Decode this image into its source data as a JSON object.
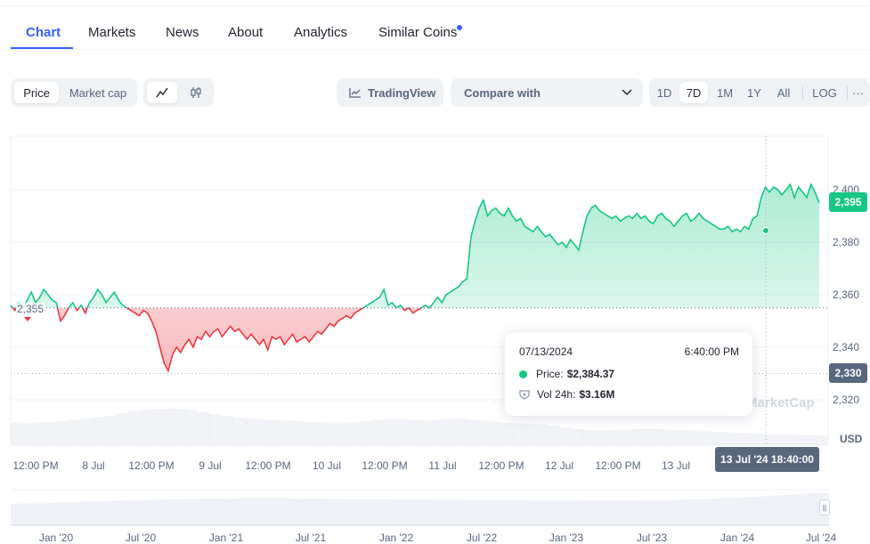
{
  "tabs": [
    {
      "label": "Chart",
      "active": true
    },
    {
      "label": "Markets"
    },
    {
      "label": "News"
    },
    {
      "label": "About"
    },
    {
      "label": "Analytics"
    },
    {
      "label": "Similar Coins"
    }
  ],
  "toolbar": {
    "price_label": "Price",
    "market_cap_label": "Market cap",
    "line_chart_icon": "line-chart-icon",
    "candlestick_icon": "candlestick-icon",
    "tradingview_label": "TradingView",
    "compare_label": "Compare with",
    "ranges": [
      "1D",
      "7D",
      "1M",
      "1Y",
      "All"
    ],
    "selected_range": "7D",
    "log_label": "LOG",
    "more_label": "···"
  },
  "chart_data": {
    "type": "area",
    "baseline": 2355,
    "baseline_label": "2,355",
    "current_price_label": "2,395",
    "crosshair_price_label": "2,330",
    "crosshair_time_label": "13 Jul '24 18:40:00",
    "y_ticks": [
      "2,400",
      "2,380",
      "2,360",
      "2,340",
      "2,320"
    ],
    "ylim": [
      2310,
      2410
    ],
    "unit": "USD",
    "x_ticks": [
      "12:00 PM",
      "8 Jul",
      "12:00 PM",
      "9 Jul",
      "12:00 PM",
      "10 Jul",
      "12:00 PM",
      "11 Jul",
      "12:00 PM",
      "12 Jul",
      "12:00 PM",
      "13 Jul"
    ],
    "colors": {
      "up": "#16c784",
      "down": "#ea3943"
    },
    "price_series": [
      2356,
      2354,
      2357,
      2355,
      2358,
      2361,
      2357,
      2359,
      2362,
      2360,
      2358,
      2357,
      2350,
      2352,
      2355,
      2357,
      2354,
      2356,
      2353,
      2357,
      2359,
      2362,
      2360,
      2357,
      2359,
      2361,
      2358,
      2356,
      2355,
      2354,
      2353,
      2352,
      2354,
      2353,
      2350,
      2346,
      2340,
      2334,
      2331,
      2337,
      2340,
      2338,
      2341,
      2343,
      2340,
      2344,
      2343,
      2346,
      2344,
      2346,
      2347,
      2344,
      2346,
      2348,
      2346,
      2347,
      2345,
      2343,
      2345,
      2343,
      2341,
      2343,
      2339,
      2344,
      2343,
      2344,
      2341,
      2343,
      2345,
      2342,
      2343,
      2344,
      2342,
      2344,
      2346,
      2345,
      2347,
      2349,
      2348,
      2350,
      2351,
      2352,
      2351,
      2353,
      2354,
      2355,
      2356,
      2357,
      2358,
      2359,
      2362,
      2356,
      2357,
      2355,
      2356,
      2354,
      2355,
      2353,
      2354,
      2355,
      2356,
      2355,
      2357,
      2359,
      2357,
      2360,
      2361,
      2362,
      2363,
      2365,
      2366,
      2382,
      2388,
      2393,
      2396,
      2390,
      2392,
      2393,
      2391,
      2390,
      2393,
      2390,
      2388,
      2389,
      2386,
      2385,
      2384,
      2386,
      2384,
      2382,
      2383,
      2381,
      2379,
      2380,
      2378,
      2381,
      2379,
      2377,
      2384,
      2390,
      2393,
      2394,
      2392,
      2391,
      2390,
      2389,
      2390,
      2388,
      2389,
      2390,
      2389,
      2391,
      2389,
      2390,
      2388,
      2387,
      2390,
      2391,
      2389,
      2388,
      2386,
      2388,
      2390,
      2391,
      2388,
      2389,
      2391,
      2389,
      2388,
      2387,
      2386,
      2385,
      2385,
      2386,
      2384,
      2385,
      2384,
      2386,
      2385,
      2389,
      2390,
      2397,
      2401,
      2399,
      2401,
      2400,
      2398,
      2400,
      2402,
      2397,
      2401,
      2399,
      2397,
      2402,
      2399,
      2395
    ],
    "volume_series": [
      0.42,
      0.41,
      0.43,
      0.44,
      0.45,
      0.47,
      0.5,
      0.52,
      0.55,
      0.6,
      0.64,
      0.66,
      0.67,
      0.68,
      0.68,
      0.66,
      0.62,
      0.58,
      0.55,
      0.52,
      0.5,
      0.48,
      0.47,
      0.46,
      0.45,
      0.44,
      0.43,
      0.42,
      0.42,
      0.43,
      0.45,
      0.47,
      0.48,
      0.48,
      0.47,
      0.46,
      0.47,
      0.49,
      0.5,
      0.48,
      0.46,
      0.44,
      0.42,
      0.41,
      0.4,
      0.39,
      0.36,
      0.33,
      0.3,
      0.28,
      0.27,
      0.28,
      0.29,
      0.3,
      0.31,
      0.3,
      0.29,
      0.28,
      0.27,
      0.26,
      0.25,
      0.24,
      0.23,
      0.22,
      0.21,
      0.2,
      0.2,
      0.19,
      0.19,
      0.18
    ]
  },
  "tooltip": {
    "date": "07/13/2024",
    "time": "6:40:00 PM",
    "price_label": "Price:",
    "price_value": "$2,384.37",
    "vol_label": "Vol 24h:",
    "vol_value": "$3.16M"
  },
  "watermark": "MarketCap",
  "navigator": {
    "ticks": [
      "Jan '20",
      "Jul '20",
      "Jan '21",
      "Jul '21",
      "Jan '22",
      "Jul '22",
      "Jan '23",
      "Jul '23",
      "Jan '24",
      "Jul '24"
    ]
  }
}
